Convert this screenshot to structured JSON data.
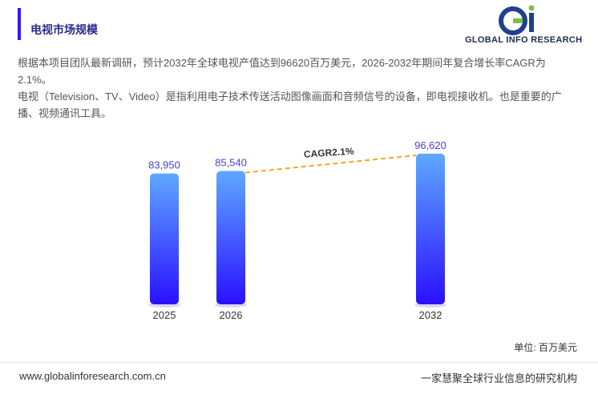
{
  "header": {
    "title": "电视市场规模",
    "logo_text": "GLOBAL INFO RESEARCH"
  },
  "description": {
    "line1": "根据本项目团队最新调研，预计2032年全球电视产值达到96620百万美元，2026-2032年期间年复合增长率CAGR为2.1%。",
    "line2": "电视（Television、TV、Video）是指利用电子技术传送活动图像画面和音频信号的设备，即电视接收机。也是重要的广播、视频通讯工具。"
  },
  "chart_data": {
    "type": "bar",
    "categories": [
      "2025",
      "2026",
      "2032"
    ],
    "values": [
      83950,
      85540,
      96620
    ],
    "value_labels": [
      "83,950",
      "85,540",
      "96,620"
    ],
    "annotation": "CAGR2.1%",
    "unit_label": "单位: 百万美元",
    "ylim": [
      0,
      100000
    ],
    "grid": false,
    "colors": {
      "bar_top": "#5fa8ff",
      "bar_bottom": "#2a10ff",
      "label": "#4b3fd1",
      "trend": "#f5a623"
    }
  },
  "footer": {
    "website": "www.globalinforesearch.com.cn",
    "slogan": "一家慧聚全球行业信息的研究机构"
  }
}
